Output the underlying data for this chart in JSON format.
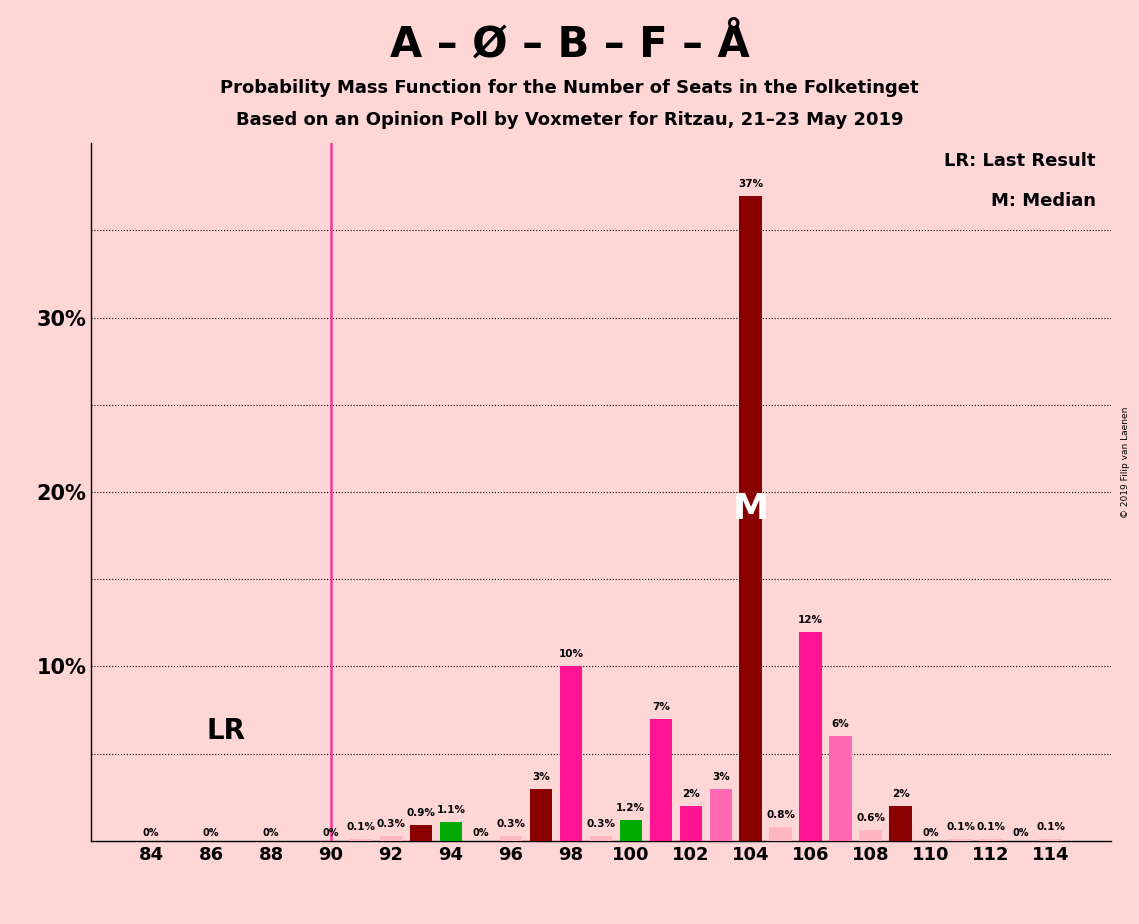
{
  "title_main": "A – Ø – B – F – Å",
  "title_sub1": "Probability Mass Function for the Number of Seats in the Folketinget",
  "title_sub2": "Based on an Opinion Poll by Voxmeter for Ritzau, 21–23 May 2019",
  "copyright": "© 2019 Filip van Laenen",
  "background_color": "#FFD6D6",
  "lr_line_x": 90,
  "lr_label": "LR",
  "median_seat": 104,
  "median_label": "M",
  "ylim": [
    0,
    40
  ],
  "dotted_lines_y": [
    5,
    10,
    15,
    20,
    25,
    30,
    35
  ],
  "bars": [
    {
      "seat": 84,
      "value": 0.0,
      "color": "#FFB6C1"
    },
    {
      "seat": 86,
      "value": 0.0,
      "color": "#FFB6C1"
    },
    {
      "seat": 88,
      "value": 0.0,
      "color": "#FFB6C1"
    },
    {
      "seat": 90,
      "value": 0.0,
      "color": "#FFB6C1"
    },
    {
      "seat": 91,
      "value": 0.1,
      "color": "#FFB6C1"
    },
    {
      "seat": 92,
      "value": 0.3,
      "color": "#FFB6C1"
    },
    {
      "seat": 93,
      "value": 0.9,
      "color": "#8B0000"
    },
    {
      "seat": 94,
      "value": 1.1,
      "color": "#00AA00"
    },
    {
      "seat": 96,
      "value": 0.3,
      "color": "#FFB6C1"
    },
    {
      "seat": 97,
      "value": 3.0,
      "color": "#8B0000"
    },
    {
      "seat": 98,
      "value": 10.0,
      "color": "#FF1493"
    },
    {
      "seat": 99,
      "value": 0.3,
      "color": "#FFB6C1"
    },
    {
      "seat": 100,
      "value": 1.2,
      "color": "#00AA00"
    },
    {
      "seat": 101,
      "value": 7.0,
      "color": "#FF1493"
    },
    {
      "seat": 102,
      "value": 2.0,
      "color": "#FF1493"
    },
    {
      "seat": 103,
      "value": 3.0,
      "color": "#FF69B4"
    },
    {
      "seat": 104,
      "value": 37.0,
      "color": "#8B0000"
    },
    {
      "seat": 105,
      "value": 0.8,
      "color": "#FFB6C1"
    },
    {
      "seat": 106,
      "value": 12.0,
      "color": "#FF1493"
    },
    {
      "seat": 107,
      "value": 6.0,
      "color": "#FF69B4"
    },
    {
      "seat": 108,
      "value": 0.6,
      "color": "#FFB6C1"
    },
    {
      "seat": 109,
      "value": 2.0,
      "color": "#8B0000"
    },
    {
      "seat": 111,
      "value": 0.1,
      "color": "#FFB6C1"
    },
    {
      "seat": 112,
      "value": 0.1,
      "color": "#FFB6C1"
    },
    {
      "seat": 114,
      "value": 0.1,
      "color": "#FFB6C1"
    }
  ],
  "xtick_seats": [
    84,
    86,
    88,
    90,
    92,
    94,
    96,
    98,
    100,
    102,
    104,
    106,
    108,
    110,
    112,
    114
  ],
  "zero_label_seats": [
    84,
    86,
    88,
    90,
    91,
    92,
    96,
    99,
    105,
    108,
    110,
    111,
    112,
    114
  ],
  "legend_lr": "LR: Last Result",
  "legend_m": "M: Median",
  "bar_width": 0.75
}
